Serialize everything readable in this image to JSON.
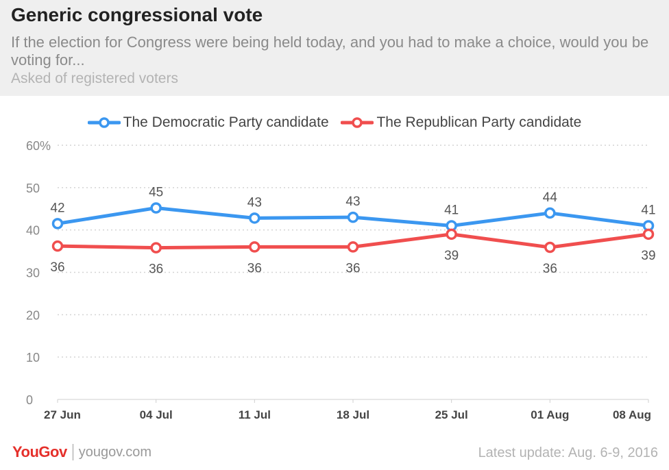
{
  "header": {
    "title": "Generic congressional vote",
    "subtitle": "If the election for Congress were being held today, and you had to make a choice, would you be voting for...",
    "note": "Asked of registered voters"
  },
  "chart_data": {
    "type": "line",
    "categories": [
      "27 Jun",
      "04 Jul",
      "11 Jul",
      "18 Jul",
      "25 Jul",
      "01 Aug",
      "08 Aug"
    ],
    "series": [
      {
        "name": "The Democratic Party candidate",
        "color": "#3b97f0",
        "values": [
          41.5,
          45.2,
          42.8,
          43.0,
          41.0,
          44.0,
          41.0
        ],
        "labels": [
          "42",
          "45",
          "43",
          "43",
          "41",
          "44",
          "41"
        ]
      },
      {
        "name": "The Republican Party candidate",
        "color": "#f04e4e",
        "values": [
          36.2,
          35.8,
          36.0,
          36.0,
          39.0,
          35.9,
          39.0
        ],
        "labels": [
          "36",
          "36",
          "36",
          "36",
          "39",
          "36",
          "39"
        ]
      }
    ],
    "ylim": [
      0,
      60
    ],
    "yticks": [
      0,
      10,
      20,
      30,
      40,
      50,
      60
    ],
    "ytick_labels": [
      "0",
      "10",
      "20",
      "30",
      "40",
      "50",
      "60%"
    ],
    "grid": true,
    "legend": "top-center"
  },
  "footer": {
    "brand": "YouGov",
    "site": "yougov.com",
    "update": "Latest update: Aug. 6-9, 2016"
  }
}
